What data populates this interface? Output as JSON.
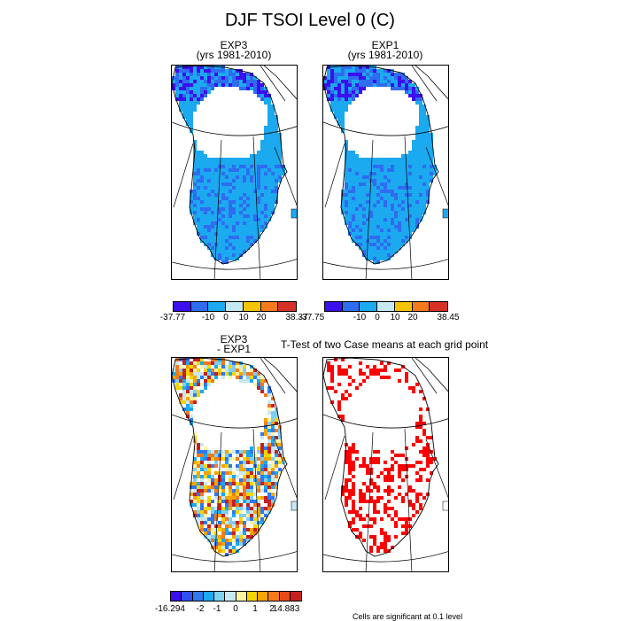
{
  "title": "DJF TSOI Level 0 (C)",
  "panels": {
    "exp3": {
      "title_line1": "EXP3",
      "title_line2": "(yrs 1981-2010)"
    },
    "exp1": {
      "title_line1": "EXP1",
      "title_line2": "(yrs 1981-2010)"
    },
    "diff": {
      "title_line1": "EXP3",
      "title_line2": "- EXP1"
    },
    "ttest": {
      "title": "T-Test of two Case means at each grid point"
    }
  },
  "colorbars": {
    "exp3": {
      "colors": [
        "#3b0ff0",
        "#2f6cf0",
        "#1ba9f0",
        "#c6e8f2",
        "#f5c400",
        "#f47a1c",
        "#d73027"
      ],
      "labels": [
        "-37.77",
        "-10",
        "0",
        "10",
        "20",
        "38.37"
      ]
    },
    "exp1": {
      "colors": [
        "#3b0ff0",
        "#2f6cf0",
        "#1ba9f0",
        "#c6e8f2",
        "#f5c400",
        "#f47a1c",
        "#d73027"
      ],
      "labels": [
        "-37.75",
        "-10",
        "0",
        "10",
        "20",
        "38.45"
      ]
    },
    "diff": {
      "colors": [
        "#3b0ff0",
        "#2f4ff0",
        "#2f78f0",
        "#1ba9f0",
        "#7fd0f0",
        "#c6e8f2",
        "#fff3a0",
        "#f5d400",
        "#f5a500",
        "#f47a1c",
        "#e94a1c",
        "#c62020"
      ],
      "labels": [
        "-16.294",
        "-2",
        "-1",
        "0",
        "1",
        "2",
        "14.883"
      ]
    }
  },
  "footnote": "Cells are significant at 0.1 level",
  "chart_data": [
    {
      "type": "heatmap",
      "title": "EXP3 (yrs 1981-2010)",
      "variable": "DJF TSOI Level 0 (C)",
      "range": [
        -37.77,
        38.37
      ],
      "levels": [
        -10,
        0,
        10,
        20
      ]
    },
    {
      "type": "heatmap",
      "title": "EXP1 (yrs 1981-2010)",
      "variable": "DJF TSOI Level 0 (C)",
      "range": [
        -37.75,
        38.45
      ],
      "levels": [
        -10,
        0,
        10,
        20
      ]
    },
    {
      "type": "heatmap",
      "title": "EXP3 - EXP1",
      "variable": "DJF TSOI Level 0 (C)",
      "range": [
        -16.294,
        14.883
      ],
      "levels": [
        -2,
        -1,
        0,
        1,
        2
      ]
    },
    {
      "type": "heatmap",
      "title": "T-Test of two Case means at each grid point",
      "significance_level": 0.1
    }
  ]
}
